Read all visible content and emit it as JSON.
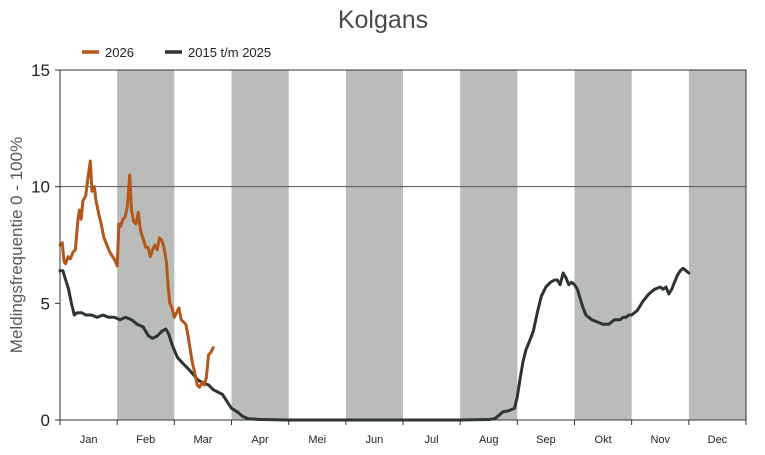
{
  "chart_data": {
    "type": "line",
    "title": "Kolgans",
    "xlabel": "",
    "ylabel": "Meldingsfrequentie 0 - 100%",
    "ylim": [
      0,
      15
    ],
    "yticks": [
      0,
      5,
      10,
      15
    ],
    "gridlines_y": [
      10
    ],
    "legend_position": "top-left",
    "month_bands": "alternating grey shading for Feb, Apr, Jun, Aug, Okt, Dec",
    "band_color": "#b9bcb8",
    "months": [
      "Jan",
      "Feb",
      "Mar",
      "Apr",
      "Mei",
      "Jun",
      "Jul",
      "Aug",
      "Sep",
      "Okt",
      "Nov",
      "Dec"
    ],
    "x_unit": "month (fractional, 0 = 1 Jan, 12 = 31 Dec)",
    "series": [
      {
        "name": "2026",
        "color": "#b5561b",
        "points": [
          [
            0.0,
            7.5
          ],
          [
            0.04,
            7.6
          ],
          [
            0.07,
            6.8
          ],
          [
            0.1,
            6.7
          ],
          [
            0.14,
            7.0
          ],
          [
            0.18,
            6.9
          ],
          [
            0.23,
            7.2
          ],
          [
            0.27,
            7.3
          ],
          [
            0.31,
            8.5
          ],
          [
            0.34,
            9.0
          ],
          [
            0.37,
            8.6
          ],
          [
            0.4,
            9.4
          ],
          [
            0.45,
            9.6
          ],
          [
            0.48,
            10.2
          ],
          [
            0.53,
            11.1
          ],
          [
            0.56,
            9.8
          ],
          [
            0.6,
            10.0
          ],
          [
            0.63,
            9.4
          ],
          [
            0.68,
            8.8
          ],
          [
            0.72,
            8.4
          ],
          [
            0.77,
            7.8
          ],
          [
            0.82,
            7.5
          ],
          [
            0.87,
            7.2
          ],
          [
            0.92,
            7.0
          ],
          [
            0.97,
            6.8
          ],
          [
            1.0,
            6.6
          ],
          [
            1.03,
            8.4
          ],
          [
            1.06,
            8.3
          ],
          [
            1.1,
            8.6
          ],
          [
            1.14,
            8.7
          ],
          [
            1.18,
            9.2
          ],
          [
            1.22,
            10.5
          ],
          [
            1.25,
            9.0
          ],
          [
            1.29,
            8.5
          ],
          [
            1.33,
            8.4
          ],
          [
            1.37,
            8.9
          ],
          [
            1.41,
            8.1
          ],
          [
            1.45,
            7.8
          ],
          [
            1.5,
            7.4
          ],
          [
            1.54,
            7.4
          ],
          [
            1.58,
            7.0
          ],
          [
            1.62,
            7.3
          ],
          [
            1.66,
            7.5
          ],
          [
            1.7,
            7.3
          ],
          [
            1.74,
            7.8
          ],
          [
            1.78,
            7.7
          ],
          [
            1.82,
            7.4
          ],
          [
            1.86,
            6.8
          ],
          [
            1.89,
            5.8
          ],
          [
            1.92,
            5.0
          ],
          [
            1.96,
            4.8
          ],
          [
            2.0,
            4.4
          ],
          [
            2.04,
            4.6
          ],
          [
            2.08,
            4.8
          ],
          [
            2.12,
            4.3
          ],
          [
            2.16,
            4.2
          ],
          [
            2.2,
            4.1
          ],
          [
            2.24,
            3.6
          ],
          [
            2.28,
            3.0
          ],
          [
            2.32,
            2.4
          ],
          [
            2.36,
            2.0
          ],
          [
            2.4,
            1.5
          ],
          [
            2.44,
            1.4
          ],
          [
            2.48,
            1.6
          ],
          [
            2.52,
            1.5
          ],
          [
            2.56,
            1.8
          ],
          [
            2.6,
            2.8
          ],
          [
            2.64,
            2.9
          ],
          [
            2.68,
            3.1
          ]
        ]
      },
      {
        "name": "2015 t/m 2025",
        "color": "#2c3530",
        "points": [
          [
            0.0,
            6.4
          ],
          [
            0.05,
            6.4
          ],
          [
            0.1,
            6.0
          ],
          [
            0.15,
            5.6
          ],
          [
            0.2,
            5.0
          ],
          [
            0.25,
            4.5
          ],
          [
            0.3,
            4.6
          ],
          [
            0.38,
            4.6
          ],
          [
            0.45,
            4.5
          ],
          [
            0.55,
            4.5
          ],
          [
            0.65,
            4.4
          ],
          [
            0.75,
            4.5
          ],
          [
            0.85,
            4.4
          ],
          [
            0.95,
            4.4
          ],
          [
            1.05,
            4.3
          ],
          [
            1.15,
            4.4
          ],
          [
            1.25,
            4.3
          ],
          [
            1.35,
            4.1
          ],
          [
            1.45,
            4.0
          ],
          [
            1.55,
            3.6
          ],
          [
            1.62,
            3.5
          ],
          [
            1.7,
            3.6
          ],
          [
            1.78,
            3.8
          ],
          [
            1.85,
            3.9
          ],
          [
            1.9,
            3.7
          ],
          [
            1.95,
            3.3
          ],
          [
            2.0,
            3.0
          ],
          [
            2.05,
            2.7
          ],
          [
            2.12,
            2.5
          ],
          [
            2.2,
            2.3
          ],
          [
            2.28,
            2.1
          ],
          [
            2.35,
            1.9
          ],
          [
            2.42,
            1.7
          ],
          [
            2.5,
            1.6
          ],
          [
            2.6,
            1.5
          ],
          [
            2.68,
            1.3
          ],
          [
            2.76,
            1.2
          ],
          [
            2.84,
            1.1
          ],
          [
            2.92,
            0.8
          ],
          [
            3.0,
            0.5
          ],
          [
            3.1,
            0.35
          ],
          [
            3.2,
            0.15
          ],
          [
            3.3,
            0.05
          ],
          [
            3.5,
            0.02
          ],
          [
            4.0,
            0.0
          ],
          [
            5.0,
            0.0
          ],
          [
            6.0,
            0.0
          ],
          [
            7.0,
            0.0
          ],
          [
            7.5,
            0.02
          ],
          [
            7.6,
            0.05
          ],
          [
            7.68,
            0.2
          ],
          [
            7.75,
            0.35
          ],
          [
            7.85,
            0.4
          ],
          [
            7.95,
            0.5
          ],
          [
            8.0,
            1.0
          ],
          [
            8.05,
            1.8
          ],
          [
            8.1,
            2.5
          ],
          [
            8.15,
            3.0
          ],
          [
            8.2,
            3.3
          ],
          [
            8.28,
            3.8
          ],
          [
            8.35,
            4.6
          ],
          [
            8.42,
            5.3
          ],
          [
            8.5,
            5.7
          ],
          [
            8.58,
            5.9
          ],
          [
            8.65,
            6.0
          ],
          [
            8.7,
            6.0
          ],
          [
            8.75,
            5.8
          ],
          [
            8.8,
            6.3
          ],
          [
            8.85,
            6.1
          ],
          [
            8.9,
            5.8
          ],
          [
            8.95,
            5.9
          ],
          [
            9.0,
            5.8
          ],
          [
            9.05,
            5.6
          ],
          [
            9.1,
            5.2
          ],
          [
            9.15,
            4.8
          ],
          [
            9.2,
            4.5
          ],
          [
            9.3,
            4.3
          ],
          [
            9.4,
            4.2
          ],
          [
            9.5,
            4.1
          ],
          [
            9.6,
            4.1
          ],
          [
            9.7,
            4.3
          ],
          [
            9.8,
            4.3
          ],
          [
            9.85,
            4.4
          ],
          [
            9.9,
            4.4
          ],
          [
            9.95,
            4.5
          ],
          [
            10.0,
            4.5
          ],
          [
            10.1,
            4.7
          ],
          [
            10.2,
            5.1
          ],
          [
            10.3,
            5.4
          ],
          [
            10.4,
            5.6
          ],
          [
            10.5,
            5.7
          ],
          [
            10.55,
            5.6
          ],
          [
            10.6,
            5.7
          ],
          [
            10.65,
            5.4
          ],
          [
            10.7,
            5.6
          ],
          [
            10.75,
            5.9
          ],
          [
            10.8,
            6.2
          ],
          [
            10.85,
            6.4
          ],
          [
            10.9,
            6.5
          ],
          [
            10.95,
            6.4
          ],
          [
            11.0,
            6.3
          ]
        ]
      }
    ]
  }
}
